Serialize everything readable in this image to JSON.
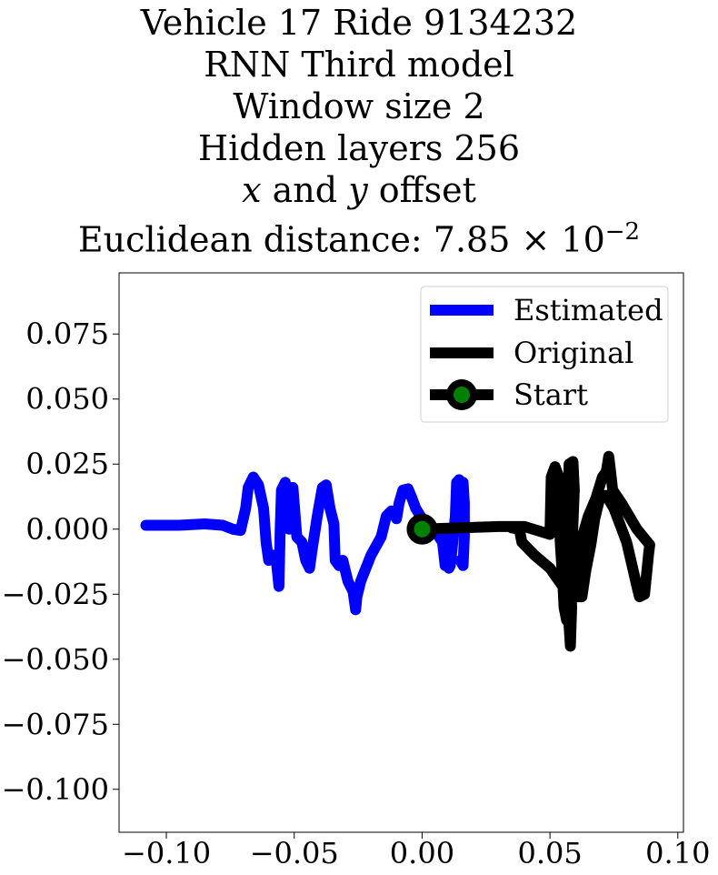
{
  "chart_data": {
    "type": "line",
    "title_lines": [
      "Vehicle 17 Ride 9134232",
      "RNN Third model",
      "Window size 2",
      "Hidden layers 256"
    ],
    "title_offset": {
      "x": "x",
      "and": " and ",
      "y": "y",
      "rest": " offset"
    },
    "title_distance": {
      "prefix": "Euclidean distance: 7.85",
      "times": " × 10",
      "exponent": "−2"
    },
    "xlim": [
      -0.1185,
      0.1022
    ],
    "ylim": [
      -0.1165,
      0.0985
    ],
    "xticks": [
      {
        "v": -0.1,
        "label": "−0.10"
      },
      {
        "v": -0.05,
        "label": "−0.05"
      },
      {
        "v": 0.0,
        "label": "0.00"
      },
      {
        "v": 0.05,
        "label": "0.05"
      },
      {
        "v": 0.1,
        "label": "0.10"
      }
    ],
    "yticks": [
      {
        "v": 0.075,
        "label": "0.075"
      },
      {
        "v": 0.05,
        "label": "0.050"
      },
      {
        "v": 0.025,
        "label": "0.025"
      },
      {
        "v": 0.0,
        "label": "0.000"
      },
      {
        "v": -0.025,
        "label": "−0.025"
      },
      {
        "v": -0.05,
        "label": "−0.050"
      },
      {
        "v": -0.075,
        "label": "−0.075"
      },
      {
        "v": -0.1,
        "label": "−0.100"
      }
    ],
    "grid": false,
    "legend_position": "top-right",
    "series": [
      {
        "name": "Estimated",
        "color": "#0000ff",
        "points": [
          [
            -0.108,
            0.0015
          ],
          [
            -0.095,
            0.0015
          ],
          [
            -0.085,
            0.002
          ],
          [
            -0.078,
            0.0015
          ],
          [
            -0.074,
            0.0
          ],
          [
            -0.071,
            -0.0005
          ],
          [
            -0.069,
            0.008
          ],
          [
            -0.068,
            0.016
          ],
          [
            -0.066,
            0.02
          ],
          [
            -0.064,
            0.017
          ],
          [
            -0.062,
            0.008
          ],
          [
            -0.061,
            -0.005
          ],
          [
            -0.06,
            -0.012
          ],
          [
            -0.058,
            -0.01
          ],
          [
            -0.057,
            -0.012
          ],
          [
            -0.056,
            -0.022
          ],
          [
            -0.0555,
            0.0
          ],
          [
            -0.055,
            0.015
          ],
          [
            -0.0535,
            0.018
          ],
          [
            -0.052,
            0.0
          ],
          [
            -0.0525,
            0.016
          ],
          [
            -0.0505,
            0.016
          ],
          [
            -0.049,
            -0.003
          ],
          [
            -0.047,
            -0.005
          ],
          [
            -0.0455,
            -0.012
          ],
          [
            -0.044,
            -0.015
          ],
          [
            -0.043,
            -0.008
          ],
          [
            -0.041,
            0.005
          ],
          [
            -0.039,
            0.016
          ],
          [
            -0.0375,
            0.017
          ],
          [
            -0.036,
            0.008
          ],
          [
            -0.0345,
            0.002
          ],
          [
            -0.034,
            -0.012
          ],
          [
            -0.0325,
            -0.014
          ],
          [
            -0.031,
            -0.012
          ],
          [
            -0.029,
            -0.02
          ],
          [
            -0.027,
            -0.024
          ],
          [
            -0.026,
            -0.031
          ],
          [
            -0.0255,
            -0.026
          ],
          [
            -0.024,
            -0.02
          ],
          [
            -0.02,
            -0.01
          ],
          [
            -0.016,
            -0.003
          ],
          [
            -0.014,
            0.005
          ],
          [
            -0.012,
            0.007
          ],
          [
            -0.01,
            0.004
          ],
          [
            -0.009,
            0.01
          ],
          [
            -0.0075,
            0.015
          ],
          [
            -0.0055,
            0.0155
          ],
          [
            -0.004,
            0.012
          ],
          [
            -0.0025,
            0.008
          ],
          [
            0.0,
            0.004
          ],
          [
            0.002,
            0.003
          ],
          [
            0.004,
            0.0
          ],
          [
            0.006,
            -0.002
          ],
          [
            0.008,
            -0.005
          ],
          [
            0.009,
            -0.014
          ],
          [
            0.0095,
            -0.005
          ],
          [
            0.01,
            0.0
          ],
          [
            0.0105,
            -0.015
          ],
          [
            0.011,
            -0.014
          ],
          [
            0.012,
            -0.005
          ],
          [
            0.013,
            0.005
          ],
          [
            0.0135,
            0.018
          ],
          [
            0.0145,
            0.019
          ],
          [
            0.015,
            0.0
          ],
          [
            0.0155,
            0.017
          ],
          [
            0.016,
            0.018
          ],
          [
            0.0165,
            0.01
          ],
          [
            0.0165,
            -0.003
          ],
          [
            0.016,
            -0.014
          ],
          [
            0.015,
            -0.012
          ]
        ]
      },
      {
        "name": "Original",
        "color": "#000000",
        "points": [
          [
            0.0,
            0.0
          ],
          [
            0.015,
            0.0005
          ],
          [
            0.03,
            0.001
          ],
          [
            0.04,
            0.001
          ],
          [
            0.05,
            -0.002
          ],
          [
            0.0505,
            0.02
          ],
          [
            0.052,
            0.024
          ],
          [
            0.0535,
            0.02
          ],
          [
            0.054,
            -0.005
          ],
          [
            0.055,
            -0.02
          ],
          [
            0.0555,
            -0.03
          ],
          [
            0.0565,
            -0.035
          ],
          [
            0.057,
            -0.03
          ],
          [
            0.058,
            -0.045
          ],
          [
            0.0585,
            -0.03
          ],
          [
            0.0575,
            -0.01
          ],
          [
            0.057,
            0.01
          ],
          [
            0.0575,
            0.025
          ],
          [
            0.059,
            0.026
          ],
          [
            0.0595,
            0.015
          ],
          [
            0.0585,
            -0.01
          ],
          [
            0.059,
            -0.025
          ],
          [
            0.0575,
            -0.03
          ],
          [
            0.056,
            -0.02
          ],
          [
            0.054,
            -0.003
          ],
          [
            0.0555,
            -0.015
          ],
          [
            0.058,
            -0.03
          ],
          [
            0.06,
            -0.02
          ],
          [
            0.062,
            -0.005
          ],
          [
            0.065,
            0.005
          ],
          [
            0.068,
            0.012
          ],
          [
            0.0705,
            0.02
          ],
          [
            0.072,
            0.022
          ],
          [
            0.073,
            0.028
          ],
          [
            0.0735,
            0.024
          ],
          [
            0.0745,
            0.015
          ],
          [
            0.078,
            0.01
          ],
          [
            0.084,
            0.0
          ],
          [
            0.089,
            -0.006
          ],
          [
            0.0885,
            -0.01
          ],
          [
            0.087,
            -0.025
          ],
          [
            0.085,
            -0.026
          ],
          [
            0.084,
            -0.022
          ],
          [
            0.08,
            -0.005
          ],
          [
            0.075,
            0.008
          ],
          [
            0.072,
            0.013
          ],
          [
            0.0695,
            0.012
          ],
          [
            0.0675,
            0.004
          ],
          [
            0.066,
            -0.006
          ],
          [
            0.064,
            -0.016
          ],
          [
            0.0625,
            -0.026
          ],
          [
            0.0595,
            -0.026
          ],
          [
            0.055,
            -0.022
          ],
          [
            0.05,
            -0.015
          ],
          [
            0.044,
            -0.01
          ],
          [
            0.039,
            -0.005
          ],
          [
            0.038,
            0.0
          ],
          [
            0.035,
            0.0005
          ]
        ]
      }
    ],
    "start_point": {
      "name": "Start",
      "x": 0.0,
      "y": 0.0,
      "marker_color": "#008000",
      "edge_color": "#000000"
    }
  }
}
